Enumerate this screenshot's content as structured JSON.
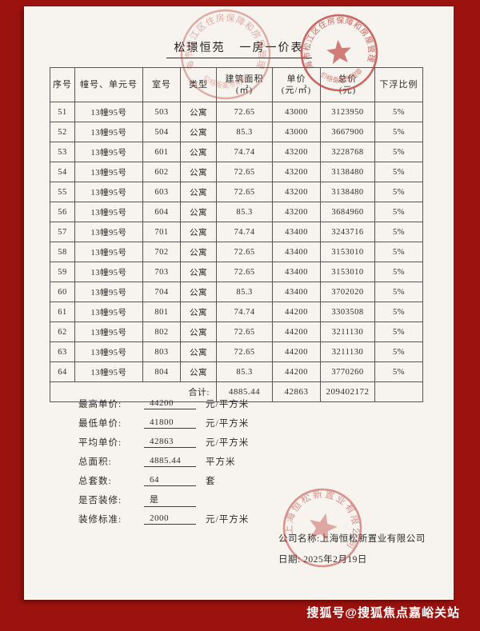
{
  "title": {
    "project": "松璟恒苑",
    "doc_type": "一房一价表"
  },
  "table": {
    "headers": [
      "序号",
      "幢号、单元号",
      "室号",
      "类型",
      "建筑面积\n(㎡)",
      "单价\n(元/㎡)",
      "总价\n(元)",
      "下浮比例"
    ],
    "rows": [
      [
        "51",
        "13幢95号",
        "503",
        "公寓",
        "72.65",
        "43000",
        "3123950",
        "5%"
      ],
      [
        "52",
        "13幢95号",
        "504",
        "公寓",
        "85.3",
        "43000",
        "3667900",
        "5%"
      ],
      [
        "53",
        "13幢95号",
        "601",
        "公寓",
        "74.74",
        "43200",
        "3228768",
        "5%"
      ],
      [
        "54",
        "13幢95号",
        "602",
        "公寓",
        "72.65",
        "43200",
        "3138480",
        "5%"
      ],
      [
        "55",
        "13幢95号",
        "603",
        "公寓",
        "72.65",
        "43200",
        "3138480",
        "5%"
      ],
      [
        "56",
        "13幢95号",
        "604",
        "公寓",
        "85.3",
        "43200",
        "3684960",
        "5%"
      ],
      [
        "57",
        "13幢95号",
        "701",
        "公寓",
        "74.74",
        "43400",
        "3243716",
        "5%"
      ],
      [
        "58",
        "13幢95号",
        "702",
        "公寓",
        "72.65",
        "43400",
        "3153010",
        "5%"
      ],
      [
        "59",
        "13幢95号",
        "703",
        "公寓",
        "72.65",
        "43400",
        "3153010",
        "5%"
      ],
      [
        "60",
        "13幢95号",
        "704",
        "公寓",
        "85.3",
        "43400",
        "3702020",
        "5%"
      ],
      [
        "61",
        "13幢95号",
        "801",
        "公寓",
        "74.74",
        "44200",
        "3303508",
        "5%"
      ],
      [
        "62",
        "13幢95号",
        "802",
        "公寓",
        "72.65",
        "44200",
        "3211130",
        "5%"
      ],
      [
        "63",
        "13幢95号",
        "803",
        "公寓",
        "72.65",
        "44200",
        "3211130",
        "5%"
      ],
      [
        "64",
        "13幢95号",
        "804",
        "公寓",
        "85.3",
        "44200",
        "3770260",
        "5%"
      ]
    ],
    "total": {
      "label": "合计:",
      "area": "4885.44",
      "unit_price": "42863",
      "total_price": "209402172",
      "discount": ""
    }
  },
  "summary": [
    {
      "label": "最高单价:",
      "value": "44200",
      "unit": "元/平方米"
    },
    {
      "label": "最低单价:",
      "value": "41800",
      "unit": "元/平方米"
    },
    {
      "label": "平均单价:",
      "value": "42863",
      "unit": "元/平方米"
    },
    {
      "label": "总面积:",
      "value": "4885.44",
      "unit": "平方米"
    },
    {
      "label": "总套数:",
      "value": "64",
      "unit": "套"
    },
    {
      "label": "是否装修:",
      "value": "是",
      "unit": ""
    },
    {
      "label": "装修标准:",
      "value": "2000",
      "unit": "元/平方米"
    }
  ],
  "signature": {
    "company_line": "公司名称:上海恒松新置业有限公司",
    "date_line": "日期: 2025年2月19日"
  },
  "stamps": {
    "gov_ring_text": "上海市松江区住房保障和房屋管理局",
    "gov_bottom_text": "价格备案专用章",
    "center_ring_text": "上海市松江区住房保障和房屋管理局",
    "center_bottom_text": "价格备案专用章",
    "company_ring_text": "上海恒松新置业有限公司"
  },
  "watermark": "搜狐号@搜狐焦点嘉峪关站",
  "colors": {
    "frame_red": "#9c120e",
    "page_bg": "#f7f4ef",
    "stamp_red": "#c0453f",
    "table_line": "#565656",
    "watermark_text": "#ffffff"
  }
}
